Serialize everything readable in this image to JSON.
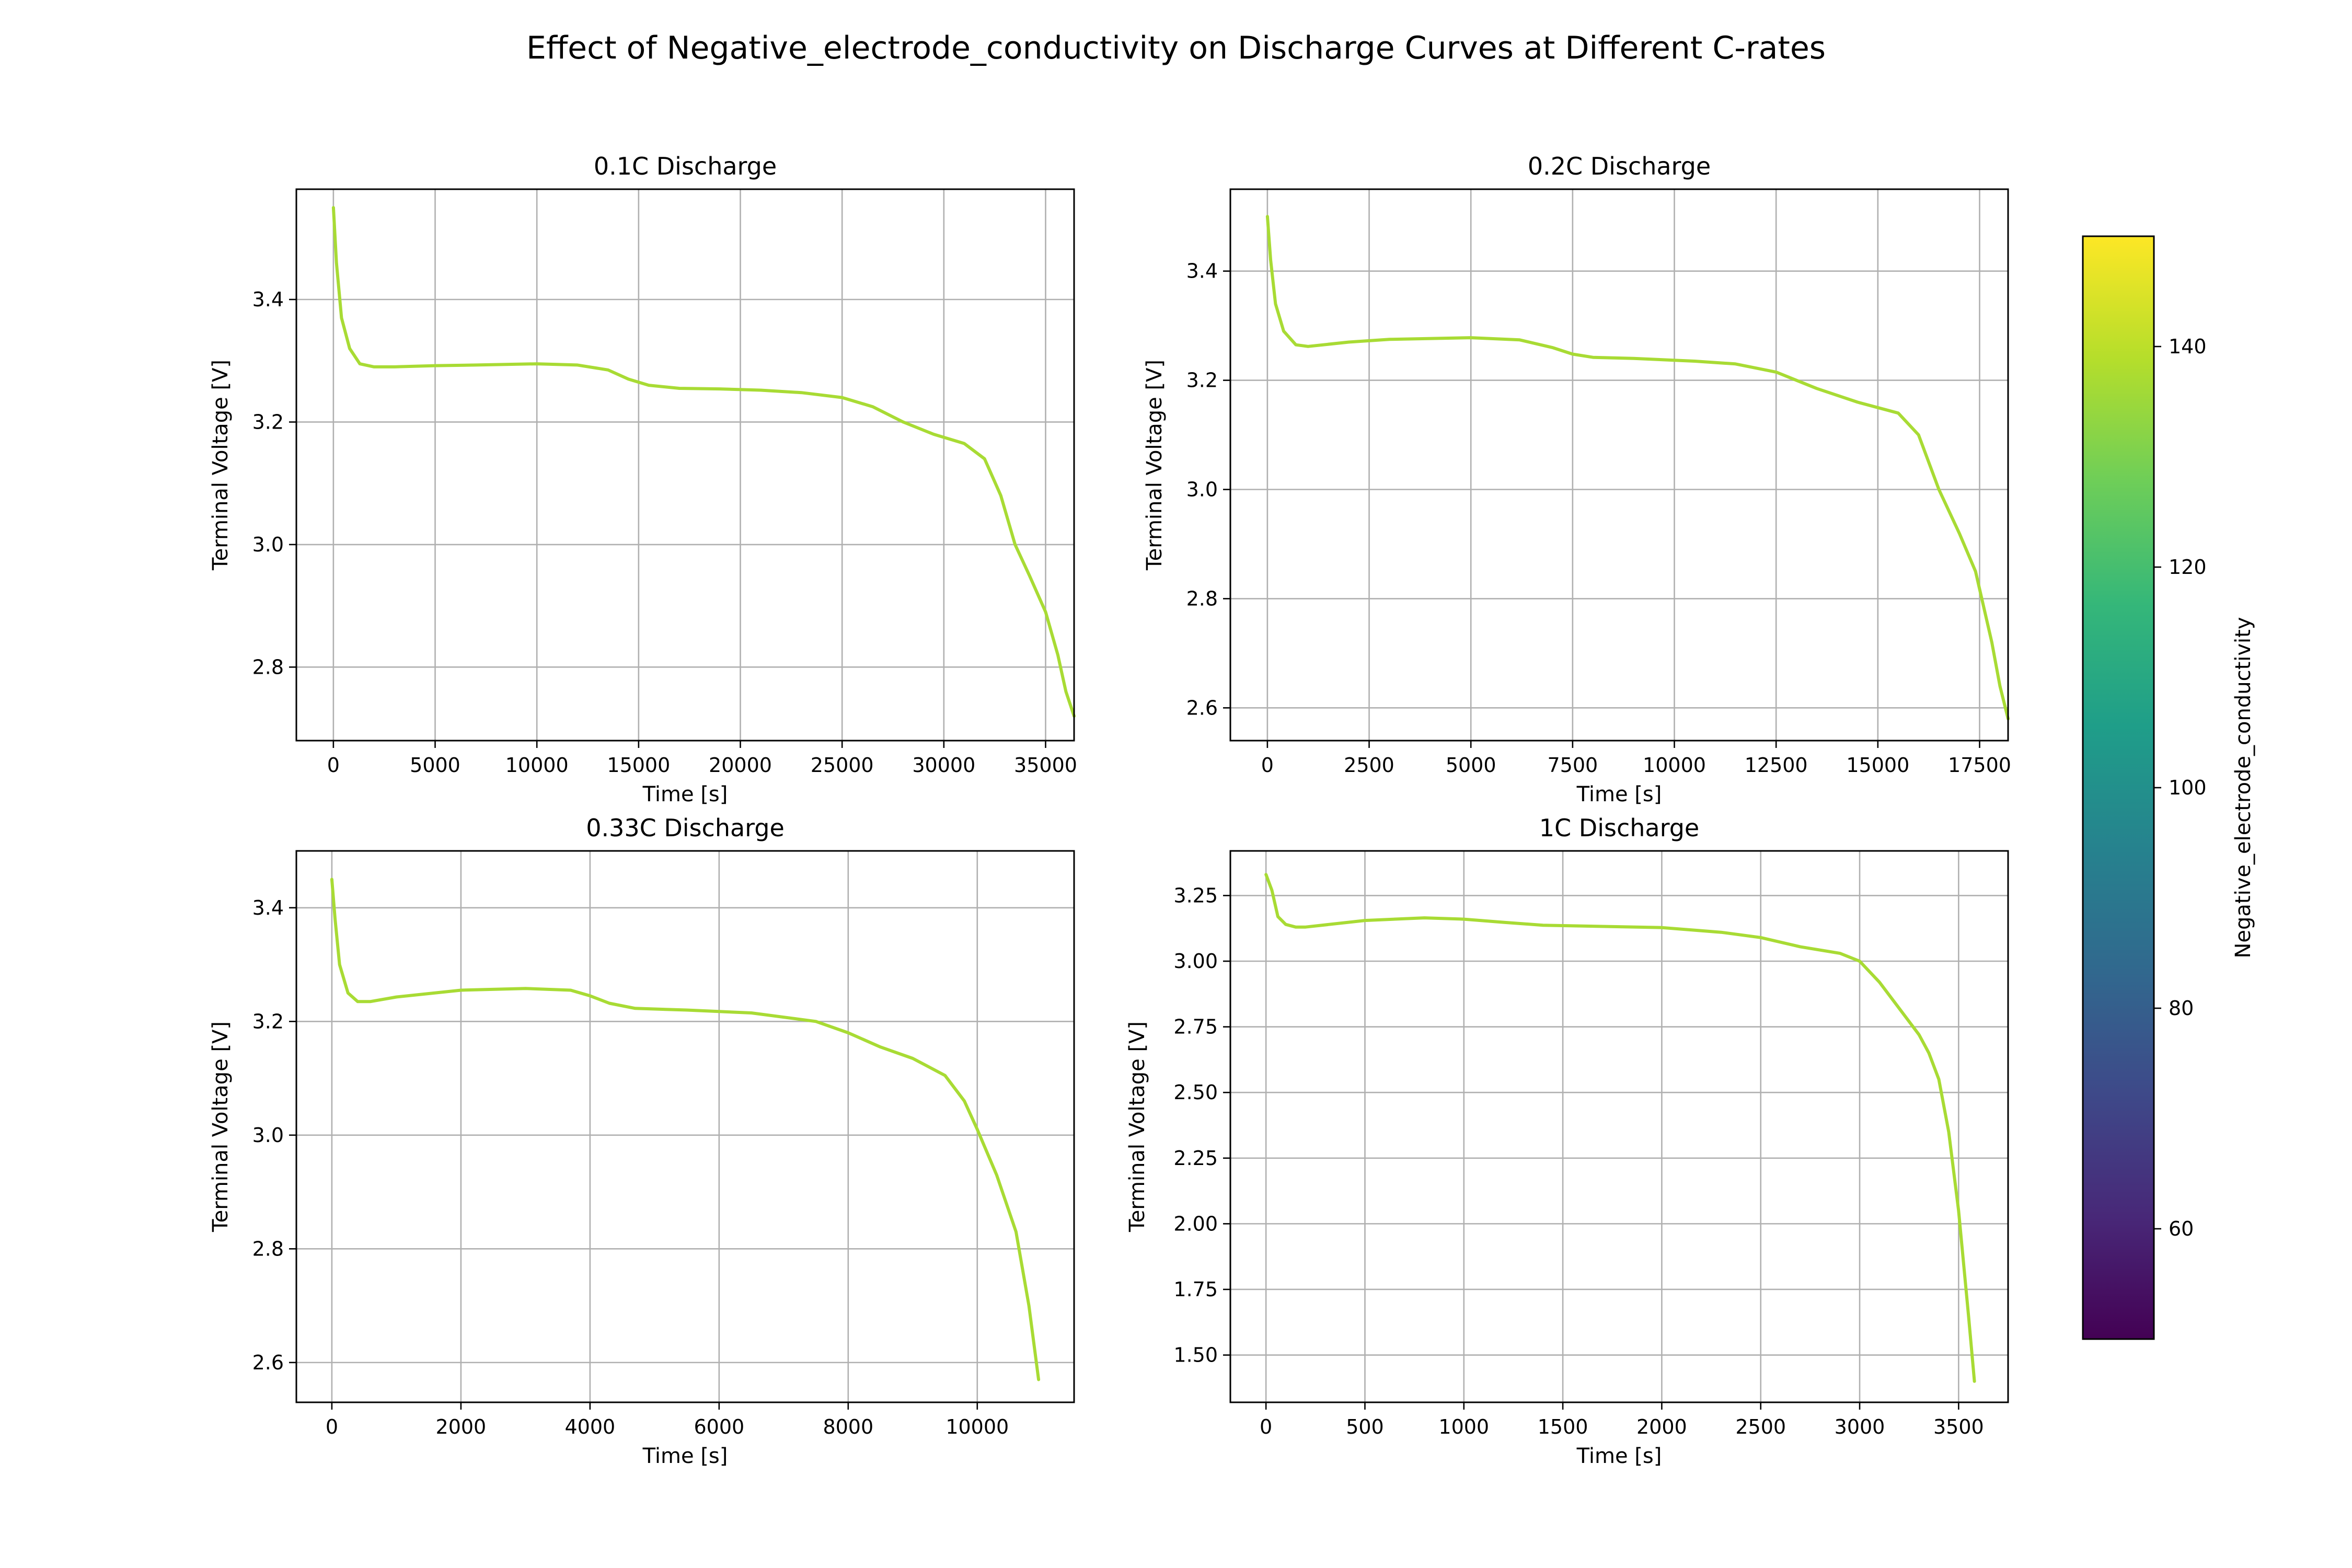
{
  "figure": {
    "title": "Effect of Negative_electrode_conductivity on Discharge Curves at Different C-rates"
  },
  "colorbar": {
    "label": "Negative_electrode_conductivity",
    "range": [
      50,
      150
    ],
    "ticks": [
      60,
      80,
      100,
      120,
      140
    ],
    "colormap": "viridis",
    "stops": [
      "#440154",
      "#482878",
      "#3e4989",
      "#31688e",
      "#26828e",
      "#1f9e89",
      "#35b779",
      "#6ece58",
      "#b5de2b",
      "#fde725"
    ]
  },
  "chart_data": [
    {
      "type": "line",
      "title": "0.1C Discharge",
      "xlabel": "Time [s]",
      "ylabel": "Terminal Voltage [V]",
      "xlim": [
        -1820,
        36400
      ],
      "ylim": [
        2.68,
        3.58
      ],
      "xticks": [
        0,
        5000,
        10000,
        15000,
        20000,
        25000,
        30000,
        35000
      ],
      "yticks": [
        2.8,
        3.0,
        3.2,
        3.4
      ],
      "ytick_decimals": 1,
      "grid": true,
      "series": [
        {
          "color": "#a8db34",
          "x": [
            0,
            150,
            400,
            800,
            1300,
            2000,
            3000,
            5000,
            7000,
            10000,
            12000,
            13500,
            14500,
            15500,
            17000,
            19000,
            21000,
            23000,
            25000,
            26500,
            28000,
            29500,
            31000,
            32000,
            32800,
            33500,
            34200,
            35000,
            35600,
            36000,
            36400
          ],
          "y": [
            3.55,
            3.46,
            3.37,
            3.32,
            3.295,
            3.29,
            3.29,
            3.292,
            3.293,
            3.295,
            3.293,
            3.285,
            3.27,
            3.26,
            3.255,
            3.254,
            3.252,
            3.248,
            3.24,
            3.225,
            3.2,
            3.18,
            3.165,
            3.14,
            3.08,
            3.0,
            2.95,
            2.89,
            2.82,
            2.76,
            2.72
          ]
        }
      ]
    },
    {
      "type": "line",
      "title": "0.2C Discharge",
      "xlabel": "Time [s]",
      "ylabel": "Terminal Voltage [V]",
      "xlim": [
        -910,
        18200
      ],
      "ylim": [
        2.54,
        3.55
      ],
      "xticks": [
        0,
        2500,
        5000,
        7500,
        10000,
        12500,
        15000,
        17500
      ],
      "yticks": [
        2.6,
        2.8,
        3.0,
        3.2,
        3.4
      ],
      "ytick_decimals": 1,
      "grid": true,
      "series": [
        {
          "color": "#a8db34",
          "x": [
            0,
            80,
            200,
            400,
            700,
            1000,
            2000,
            3000,
            5000,
            6200,
            7000,
            7500,
            8000,
            9000,
            10500,
            11500,
            12500,
            13500,
            14500,
            15500,
            16000,
            16500,
            17000,
            17400,
            17800,
            18000,
            18200
          ],
          "y": [
            3.5,
            3.42,
            3.34,
            3.29,
            3.265,
            3.262,
            3.27,
            3.275,
            3.278,
            3.274,
            3.26,
            3.248,
            3.242,
            3.24,
            3.235,
            3.23,
            3.215,
            3.185,
            3.16,
            3.14,
            3.1,
            3.0,
            2.92,
            2.85,
            2.72,
            2.64,
            2.58
          ]
        }
      ]
    },
    {
      "type": "line",
      "title": "0.33C Discharge",
      "xlabel": "Time [s]",
      "ylabel": "Terminal Voltage [V]",
      "xlim": [
        -550,
        11500
      ],
      "ylim": [
        2.53,
        3.5
      ],
      "xticks": [
        0,
        2000,
        4000,
        6000,
        8000,
        10000
      ],
      "yticks": [
        2.6,
        2.8,
        3.0,
        3.2,
        3.4
      ],
      "ytick_decimals": 1,
      "grid": true,
      "series": [
        {
          "color": "#a8db34",
          "x": [
            0,
            50,
            120,
            250,
            400,
            600,
            1000,
            2000,
            3000,
            3700,
            4000,
            4300,
            4700,
            5500,
            6500,
            7500,
            8000,
            8500,
            9000,
            9500,
            9800,
            10000,
            10300,
            10600,
            10800,
            10950
          ],
          "y": [
            3.45,
            3.38,
            3.3,
            3.25,
            3.235,
            3.235,
            3.243,
            3.255,
            3.258,
            3.255,
            3.245,
            3.232,
            3.223,
            3.22,
            3.215,
            3.2,
            3.18,
            3.155,
            3.135,
            3.105,
            3.06,
            3.01,
            2.93,
            2.83,
            2.7,
            2.57
          ]
        }
      ]
    },
    {
      "type": "line",
      "title": "1C Discharge",
      "xlabel": "Time [s]",
      "ylabel": "Terminal Voltage [V]",
      "xlim": [
        -180,
        3750
      ],
      "ylim": [
        1.32,
        3.42
      ],
      "xticks": [
        0,
        500,
        1000,
        1500,
        2000,
        2500,
        3000,
        3500
      ],
      "yticks": [
        1.5,
        1.75,
        2.0,
        2.25,
        2.5,
        2.75,
        3.0,
        3.25
      ],
      "ytick_decimals": 2,
      "grid": true,
      "series": [
        {
          "color": "#a8db34",
          "x": [
            0,
            30,
            60,
            100,
            150,
            200,
            500,
            800,
            1000,
            1200,
            1400,
            2000,
            2300,
            2500,
            2700,
            2900,
            3000,
            3100,
            3200,
            3300,
            3350,
            3400,
            3450,
            3500,
            3550,
            3580
          ],
          "y": [
            3.33,
            3.27,
            3.17,
            3.14,
            3.13,
            3.13,
            3.155,
            3.165,
            3.16,
            3.148,
            3.137,
            3.128,
            3.11,
            3.09,
            3.055,
            3.03,
            3.0,
            2.92,
            2.82,
            2.72,
            2.65,
            2.55,
            2.35,
            2.05,
            1.65,
            1.4
          ]
        }
      ]
    }
  ]
}
